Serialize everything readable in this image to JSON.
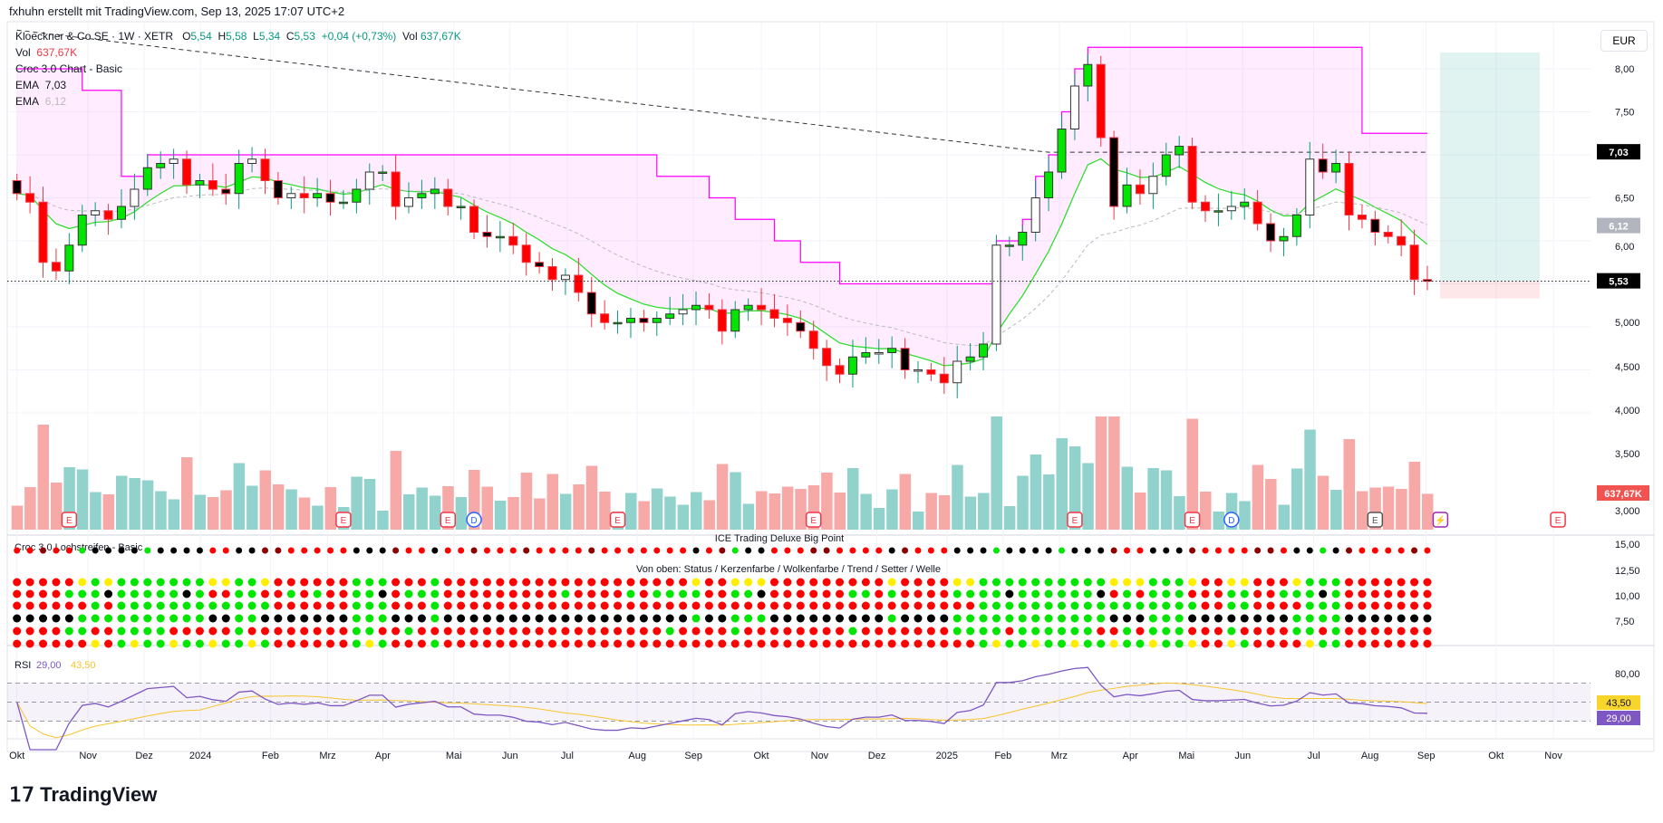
{
  "header": {
    "attribution": "fxhuhn erstellt mit TradingView.com, Sep 13, 2025 17:07 UTC+2"
  },
  "legend": {
    "symbol": "Kloeckner & Co SE · 1W · XETR",
    "open_label": "O",
    "open": "5,54",
    "high_label": "H",
    "high": "5,58",
    "low_label": "L",
    "low": "5,34",
    "close_label": "C",
    "close": "5,53",
    "change": "+0,04 (+0,73%)",
    "vol_label": "Vol",
    "vol": "637,67K",
    "vol2_label": "Vol",
    "vol2": "637,67K",
    "indicator": "Croc 3.0 Chart - Basic",
    "ema1_label": "EMA",
    "ema1": "7,03",
    "ema2_label": "EMA",
    "ema2": "6,12"
  },
  "currency": "EUR",
  "price_axis": [
    "8,00",
    "7,50",
    "6,50",
    "6,00",
    "5,000",
    "4,500",
    "4,000",
    "3,500",
    "3,000"
  ],
  "price_badges": {
    "ema_long": "7,03",
    "ema_short": "6,12",
    "last": "5,53",
    "volume": "637,67K"
  },
  "pane_lochstreifen": {
    "title": "Croc 3.0 Lochstreifen - Basic",
    "subtitle1": "ICE Trading Deluxe Big Point",
    "subtitle2": "Von oben: Status / Kerzenfarbe / Wolkenfarbe / Trend / Setter / Welle",
    "axis": [
      "15,00",
      "12,50",
      "10,00",
      "7,50"
    ]
  },
  "pane_rsi": {
    "label": "RSI",
    "rsi": "29,00",
    "ma": "43,50",
    "axis": [
      "80,00"
    ],
    "badge_ma": "43,50",
    "badge_rsi": "29,00"
  },
  "time_axis": [
    "Okt",
    "Nov",
    "Dez",
    "2024",
    "Feb",
    "Mrz",
    "Apr",
    "Mai",
    "Jun",
    "Jul",
    "Aug",
    "Sep",
    "Okt",
    "Nov",
    "Dez",
    "2025",
    "Feb",
    "Mrz",
    "Apr",
    "Mai",
    "Jun",
    "Jul",
    "Aug",
    "Sep",
    "Okt",
    "Nov"
  ],
  "logo": "TradingView",
  "colors": {
    "up": "#00e600",
    "down": "#ff0000",
    "vol_up": "#92d2cc",
    "vol_down": "#f7a9a7",
    "cloud": "#ff00ff",
    "ema_fast": "#33dd33",
    "rsi": "#7e57c2",
    "rsi_ma": "#f7c52b"
  },
  "chart_data": {
    "type": "candlestick",
    "interval": "1W",
    "closes": [
      6.55,
      6.45,
      5.75,
      5.65,
      5.95,
      6.3,
      6.35,
      6.25,
      6.4,
      6.6,
      6.85,
      6.9,
      6.95,
      6.65,
      6.7,
      6.6,
      6.55,
      6.9,
      6.95,
      6.7,
      6.5,
      6.55,
      6.5,
      6.55,
      6.45,
      6.45,
      6.6,
      6.8,
      6.8,
      6.4,
      6.5,
      6.55,
      6.6,
      6.4,
      6.4,
      6.1,
      6.05,
      6.05,
      5.95,
      5.75,
      5.7,
      5.55,
      5.6,
      5.4,
      5.15,
      5.05,
      5.05,
      5.1,
      5.05,
      5.1,
      5.15,
      5.2,
      5.25,
      5.2,
      4.95,
      5.2,
      5.25,
      5.2,
      5.1,
      5.05,
      4.95,
      4.75,
      4.55,
      4.45,
      4.65,
      4.7,
      4.7,
      4.75,
      4.5,
      4.5,
      4.45,
      4.35,
      4.6,
      4.65,
      4.8,
      5.95,
      5.95,
      6.1,
      6.5,
      6.8,
      7.3,
      7.8,
      8.05,
      7.2,
      6.4,
      6.65,
      6.55,
      6.75,
      7.0,
      7.1,
      6.45,
      6.35,
      6.35,
      6.4,
      6.45,
      6.2,
      6.0,
      6.05,
      6.3,
      6.95,
      6.8,
      6.9,
      6.3,
      6.25,
      6.1,
      6.05,
      5.95,
      5.55,
      5.53
    ],
    "events": [
      {
        "week": 4,
        "type": "E"
      },
      {
        "week": 25,
        "type": "E"
      },
      {
        "week": 33,
        "type": "E"
      },
      {
        "week": 35,
        "type": "D"
      },
      {
        "week": 46,
        "type": "E"
      },
      {
        "week": 61,
        "type": "E"
      },
      {
        "week": 81,
        "type": "E"
      },
      {
        "week": 90,
        "type": "E"
      },
      {
        "week": 93,
        "type": "D"
      },
      {
        "week": 104,
        "type": "E"
      },
      {
        "week": 109,
        "type": "⚡"
      },
      {
        "week": 118,
        "type": "E"
      }
    ],
    "ylim": [
      4.0,
      8.3
    ]
  }
}
